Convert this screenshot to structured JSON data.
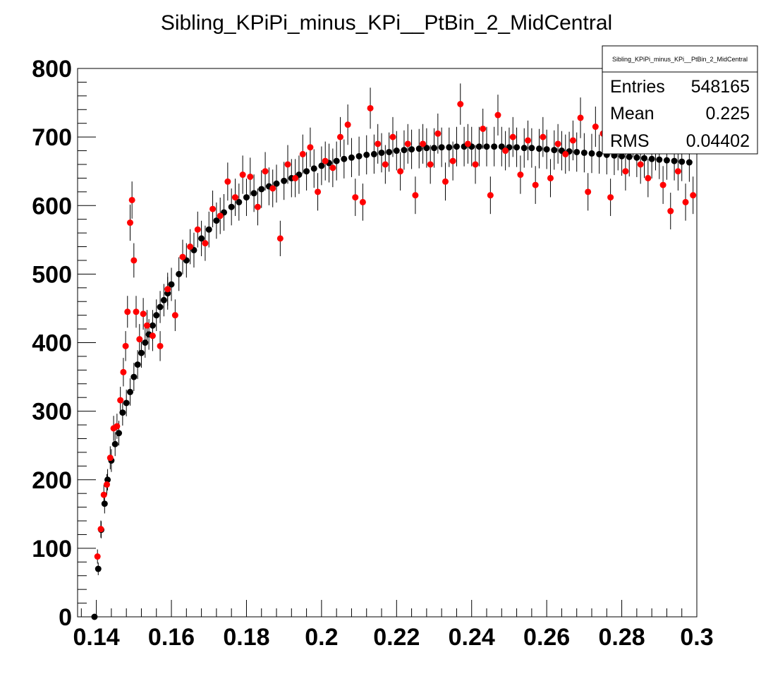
{
  "chart_data": {
    "type": "scatter",
    "title": "Sibling_KPiPi_minus_KPi__PtBin_2_MidCentral",
    "xlim": [
      0.135,
      0.3
    ],
    "ylim": [
      0,
      800
    ],
    "x_ticks": [
      "0.14",
      "0.16",
      "0.18",
      "0.2",
      "0.22",
      "0.24",
      "0.26",
      "0.28",
      "0.3"
    ],
    "y_ticks": [
      "0",
      "100",
      "200",
      "300",
      "400",
      "500",
      "600",
      "700",
      "800"
    ],
    "grid": false,
    "legend": "none",
    "stats_box": {
      "title": "Sibling_KPiPi_minus_KPi__PtBin_2_MidCentral",
      "position": "top-right",
      "rows": [
        {
          "label": "Entries",
          "value": "548165"
        },
        {
          "label": "Mean",
          "value": "0.225"
        },
        {
          "label": "RMS",
          "value": "0.04402"
        }
      ]
    },
    "series": [
      {
        "color": "#000000",
        "marker": "circle",
        "points": [
          [
            0.1395,
            0
          ],
          [
            0.1405,
            70
          ],
          [
            0.1413,
            127
          ],
          [
            0.1422,
            165
          ],
          [
            0.143,
            200
          ],
          [
            0.144,
            228
          ],
          [
            0.145,
            252
          ],
          [
            0.146,
            268
          ],
          [
            0.147,
            298
          ],
          [
            0.148,
            312
          ],
          [
            0.149,
            328
          ],
          [
            0.15,
            350
          ],
          [
            0.151,
            368
          ],
          [
            0.152,
            385
          ],
          [
            0.153,
            400
          ],
          [
            0.154,
            412
          ],
          [
            0.155,
            425
          ],
          [
            0.156,
            440
          ],
          [
            0.157,
            452
          ],
          [
            0.158,
            462
          ],
          [
            0.159,
            472
          ],
          [
            0.16,
            485
          ],
          [
            0.162,
            500
          ],
          [
            0.164,
            520
          ],
          [
            0.166,
            535
          ],
          [
            0.168,
            552
          ],
          [
            0.17,
            565
          ],
          [
            0.172,
            578
          ],
          [
            0.174,
            590
          ],
          [
            0.176,
            598
          ],
          [
            0.178,
            605
          ],
          [
            0.18,
            612
          ],
          [
            0.182,
            618
          ],
          [
            0.184,
            624
          ],
          [
            0.186,
            628
          ],
          [
            0.188,
            632
          ],
          [
            0.19,
            636
          ],
          [
            0.192,
            640
          ],
          [
            0.194,
            645
          ],
          [
            0.196,
            650
          ],
          [
            0.198,
            654
          ],
          [
            0.2,
            658
          ],
          [
            0.202,
            662
          ],
          [
            0.204,
            665
          ],
          [
            0.206,
            668
          ],
          [
            0.208,
            670
          ],
          [
            0.21,
            672
          ],
          [
            0.212,
            674
          ],
          [
            0.214,
            675
          ],
          [
            0.216,
            677
          ],
          [
            0.218,
            678
          ],
          [
            0.22,
            680
          ],
          [
            0.222,
            681
          ],
          [
            0.224,
            682
          ],
          [
            0.226,
            683
          ],
          [
            0.228,
            684
          ],
          [
            0.23,
            684
          ],
          [
            0.232,
            685
          ],
          [
            0.234,
            685
          ],
          [
            0.236,
            686
          ],
          [
            0.238,
            686
          ],
          [
            0.24,
            686
          ],
          [
            0.242,
            686
          ],
          [
            0.244,
            686
          ],
          [
            0.246,
            686
          ],
          [
            0.248,
            686
          ],
          [
            0.25,
            685
          ],
          [
            0.252,
            685
          ],
          [
            0.254,
            684
          ],
          [
            0.256,
            684
          ],
          [
            0.258,
            683
          ],
          [
            0.26,
            682
          ],
          [
            0.262,
            681
          ],
          [
            0.264,
            680
          ],
          [
            0.266,
            679
          ],
          [
            0.268,
            678
          ],
          [
            0.27,
            677
          ],
          [
            0.272,
            676
          ],
          [
            0.274,
            675
          ],
          [
            0.276,
            674
          ],
          [
            0.278,
            673
          ],
          [
            0.28,
            672
          ],
          [
            0.282,
            671
          ],
          [
            0.284,
            670
          ],
          [
            0.286,
            669
          ],
          [
            0.288,
            668
          ],
          [
            0.29,
            667
          ],
          [
            0.292,
            666
          ],
          [
            0.294,
            665
          ],
          [
            0.296,
            664
          ],
          [
            0.298,
            663
          ]
        ]
      },
      {
        "color": "#ff0000",
        "marker": "circle",
        "points": [
          [
            0.1403,
            88
          ],
          [
            0.1412,
            128
          ],
          [
            0.142,
            178
          ],
          [
            0.1428,
            193
          ],
          [
            0.1437,
            232
          ],
          [
            0.1446,
            275
          ],
          [
            0.1455,
            278
          ],
          [
            0.1464,
            316
          ],
          [
            0.1472,
            357
          ],
          [
            0.1478,
            395
          ],
          [
            0.1483,
            445
          ],
          [
            0.149,
            575
          ],
          [
            0.1495,
            608
          ],
          [
            0.15,
            520
          ],
          [
            0.1506,
            445
          ],
          [
            0.1515,
            405
          ],
          [
            0.1525,
            442
          ],
          [
            0.1535,
            425
          ],
          [
            0.155,
            410
          ],
          [
            0.157,
            395
          ],
          [
            0.159,
            478
          ],
          [
            0.161,
            440
          ],
          [
            0.163,
            525
          ],
          [
            0.165,
            540
          ],
          [
            0.167,
            565
          ],
          [
            0.169,
            545
          ],
          [
            0.171,
            595
          ],
          [
            0.173,
            585
          ],
          [
            0.175,
            635
          ],
          [
            0.177,
            612
          ],
          [
            0.179,
            645
          ],
          [
            0.181,
            642
          ],
          [
            0.183,
            598
          ],
          [
            0.185,
            650
          ],
          [
            0.187,
            625
          ],
          [
            0.189,
            552
          ],
          [
            0.191,
            660
          ],
          [
            0.193,
            640
          ],
          [
            0.195,
            675
          ],
          [
            0.197,
            685
          ],
          [
            0.199,
            620
          ],
          [
            0.201,
            665
          ],
          [
            0.203,
            655
          ],
          [
            0.205,
            700
          ],
          [
            0.207,
            718
          ],
          [
            0.209,
            612
          ],
          [
            0.211,
            605
          ],
          [
            0.213,
            742
          ],
          [
            0.215,
            690
          ],
          [
            0.217,
            660
          ],
          [
            0.219,
            700
          ],
          [
            0.221,
            650
          ],
          [
            0.223,
            690
          ],
          [
            0.225,
            615
          ],
          [
            0.227,
            690
          ],
          [
            0.229,
            660
          ],
          [
            0.231,
            705
          ],
          [
            0.233,
            635
          ],
          [
            0.235,
            665
          ],
          [
            0.237,
            748
          ],
          [
            0.239,
            690
          ],
          [
            0.241,
            660
          ],
          [
            0.243,
            712
          ],
          [
            0.245,
            615
          ],
          [
            0.247,
            732
          ],
          [
            0.249,
            680
          ],
          [
            0.251,
            700
          ],
          [
            0.253,
            645
          ],
          [
            0.255,
            695
          ],
          [
            0.257,
            630
          ],
          [
            0.259,
            700
          ],
          [
            0.261,
            640
          ],
          [
            0.263,
            690
          ],
          [
            0.265,
            675
          ],
          [
            0.267,
            695
          ],
          [
            0.269,
            728
          ],
          [
            0.271,
            620
          ],
          [
            0.273,
            715
          ],
          [
            0.275,
            705
          ],
          [
            0.277,
            612
          ],
          [
            0.279,
            680
          ],
          [
            0.281,
            650
          ],
          [
            0.283,
            700
          ],
          [
            0.285,
            660
          ],
          [
            0.287,
            640
          ],
          [
            0.289,
            680
          ],
          [
            0.291,
            630
          ],
          [
            0.293,
            592
          ],
          [
            0.295,
            650
          ],
          [
            0.297,
            605
          ],
          [
            0.299,
            615
          ]
        ]
      }
    ]
  }
}
